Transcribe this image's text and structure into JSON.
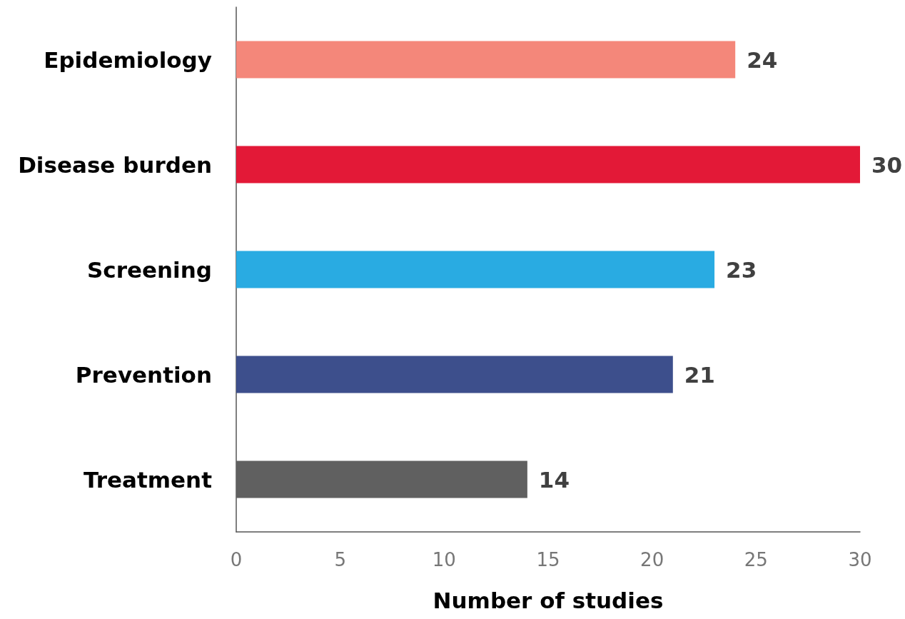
{
  "chart_data": {
    "type": "bar",
    "orientation": "horizontal",
    "xlabel": "Number of studies",
    "categories": [
      "Epidemiology",
      "Disease burden",
      "Screening",
      "Prevention",
      "Treatment"
    ],
    "values": [
      24,
      30,
      23,
      21,
      14
    ],
    "colors": [
      "#f4877a",
      "#e31937",
      "#29abe2",
      "#3d4f8c",
      "#606060"
    ],
    "xlim": [
      0,
      30
    ],
    "xticks": [
      0,
      5,
      10,
      15,
      20,
      25,
      30
    ],
    "grid": false,
    "data_labels": true
  }
}
